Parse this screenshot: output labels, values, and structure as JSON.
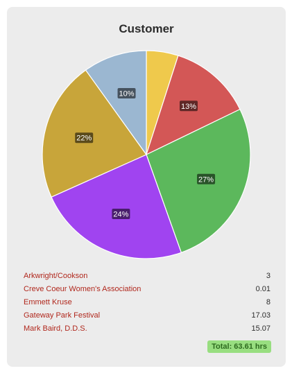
{
  "title": "Customer",
  "legend": [
    {
      "name": "Arkwright/Cookson",
      "value": "3"
    },
    {
      "name": "Creve Coeur Women's Association",
      "value": "0.01"
    },
    {
      "name": "Emmett Kruse",
      "value": "8"
    },
    {
      "name": "Gateway Park Festival",
      "value": "17.03"
    },
    {
      "name": "Mark Baird, D.D.S.",
      "value": "15.07"
    }
  ],
  "total_label": "Total: 63.61 hrs",
  "chart_data": {
    "type": "pie",
    "title": "Customer",
    "slices": [
      {
        "value": 5,
        "label": "",
        "color": "#efc94c"
      },
      {
        "value": 13,
        "label": "13%",
        "color": "#d35756"
      },
      {
        "value": 27,
        "label": "27%",
        "color": "#5cb85c"
      },
      {
        "value": 24,
        "label": "24%",
        "color": "#a044f0"
      },
      {
        "value": 22,
        "label": "22%",
        "color": "#c8a53a"
      },
      {
        "value": 10,
        "label": "10%",
        "color": "#9bb7d1"
      }
    ]
  }
}
